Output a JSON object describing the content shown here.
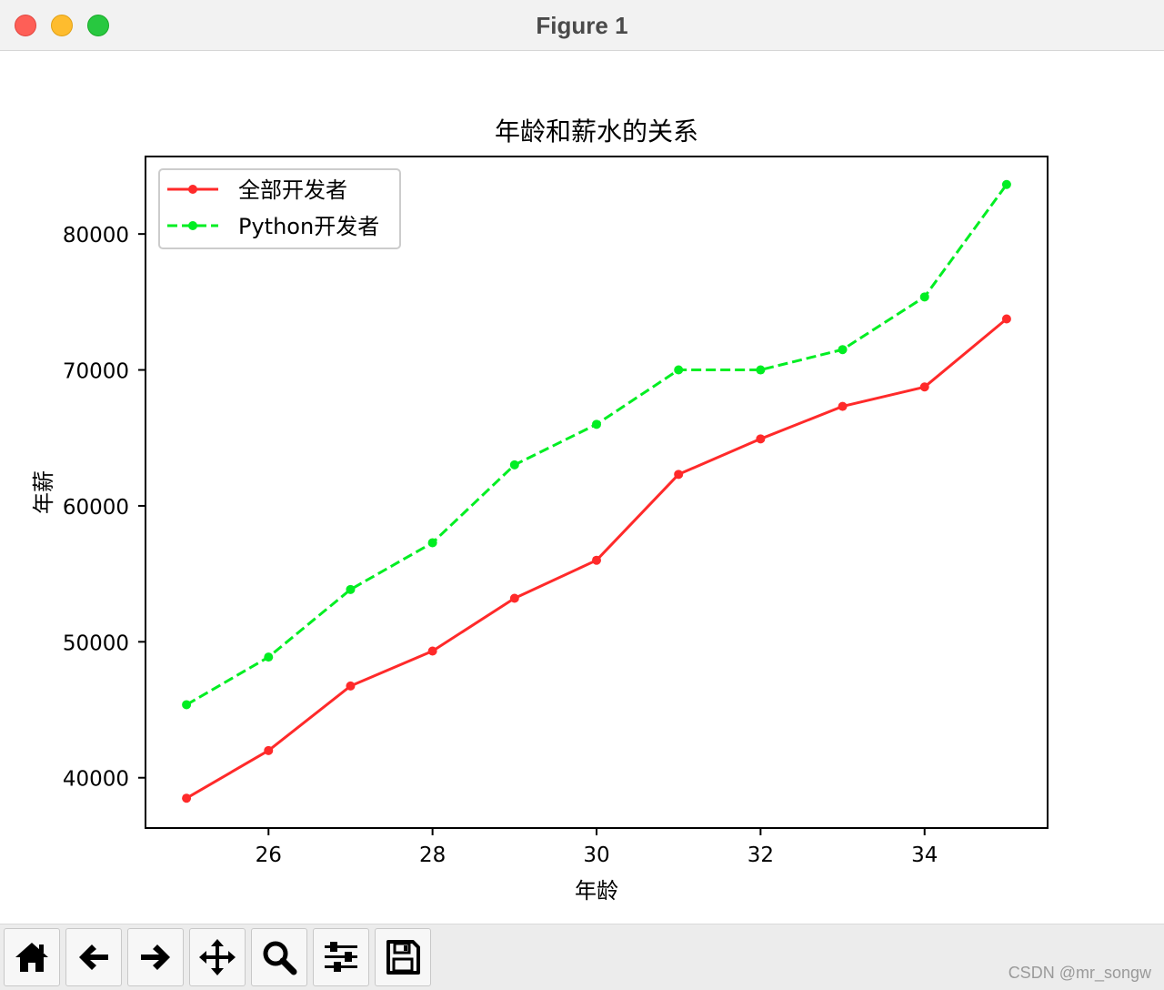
{
  "window": {
    "title": "Figure 1",
    "colors": {
      "close": "#fe5f57",
      "minimize": "#febc2e",
      "zoom": "#28c840"
    }
  },
  "toolbar": {
    "buttons": [
      {
        "icon": "home-icon"
      },
      {
        "icon": "back-arrow-icon"
      },
      {
        "icon": "forward-arrow-icon"
      },
      {
        "icon": "pan-icon"
      },
      {
        "icon": "zoom-icon"
      },
      {
        "icon": "configure-subplots-icon"
      },
      {
        "icon": "save-icon"
      }
    ]
  },
  "watermark": "CSDN @mr_songw",
  "chart_data": {
    "type": "line",
    "title": "年龄和薪水的关系",
    "xlabel": "年龄",
    "ylabel": "年薪",
    "x": [
      25,
      26,
      27,
      28,
      29,
      30,
      31,
      32,
      33,
      34,
      35
    ],
    "xlim": [
      24.5,
      35.5
    ],
    "ylim": [
      36300,
      85700
    ],
    "xticks": [
      26,
      28,
      30,
      32,
      34
    ],
    "yticks": [
      40000,
      50000,
      60000,
      70000,
      80000
    ],
    "grid": false,
    "legend_position": "upper left",
    "series": [
      {
        "name": "全部开发者",
        "color": "#ff2a2a",
        "linestyle": "solid",
        "marker": "dot",
        "values": [
          38496,
          42000,
          46752,
          49320,
          53200,
          56000,
          62316,
          64928,
          67317,
          68748,
          73752
        ]
      },
      {
        "name": "Python开发者",
        "color": "#00ee22",
        "linestyle": "dashed",
        "marker": "dot",
        "values": [
          45372,
          48876,
          53850,
          57287,
          63016,
          65998,
          70003,
          70000,
          71496,
          75370,
          83640
        ]
      }
    ]
  }
}
